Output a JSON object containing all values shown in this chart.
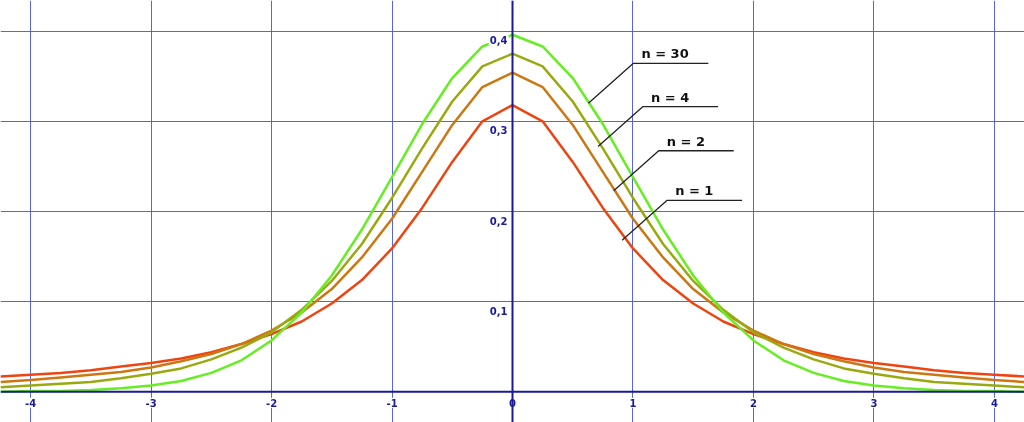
{
  "chart_data": {
    "type": "line",
    "x": [
      -4.25,
      -4,
      -3.75,
      -3.5,
      -3.25,
      -3,
      -2.75,
      -2.5,
      -2.25,
      -2,
      -1.75,
      -1.5,
      -1.25,
      -1,
      -0.75,
      -0.5,
      -0.25,
      0,
      0.25,
      0.5,
      0.75,
      1,
      1.25,
      1.5,
      1.75,
      2,
      2.25,
      2.5,
      2.75,
      3,
      3.25,
      3.5,
      3.75,
      4,
      4.25
    ],
    "series": [
      {
        "color": "#ee4411",
        "values": [
          0.017,
          0.019,
          0.021,
          0.024,
          0.028,
          0.032,
          0.037,
          0.044,
          0.053,
          0.064,
          0.078,
          0.098,
          0.124,
          0.159,
          0.204,
          0.255,
          0.3,
          0.318,
          0.3,
          0.255,
          0.204,
          0.159,
          0.124,
          0.098,
          0.078,
          0.064,
          0.053,
          0.044,
          0.037,
          0.032,
          0.028,
          0.024,
          0.021,
          0.019,
          0.017
        ]
      },
      {
        "color": "#cc7711",
        "values": [
          0.011,
          0.013,
          0.016,
          0.019,
          0.022,
          0.027,
          0.034,
          0.042,
          0.053,
          0.068,
          0.088,
          0.114,
          0.149,
          0.192,
          0.244,
          0.296,
          0.338,
          0.354,
          0.338,
          0.296,
          0.244,
          0.192,
          0.149,
          0.114,
          0.088,
          0.068,
          0.053,
          0.042,
          0.034,
          0.027,
          0.022,
          0.019,
          0.016,
          0.013,
          0.011
        ]
      },
      {
        "color": "#99aa11",
        "values": [
          0.005,
          0.007,
          0.009,
          0.011,
          0.015,
          0.02,
          0.026,
          0.036,
          0.049,
          0.066,
          0.091,
          0.123,
          0.164,
          0.215,
          0.27,
          0.322,
          0.361,
          0.375,
          0.361,
          0.322,
          0.27,
          0.215,
          0.164,
          0.123,
          0.091,
          0.066,
          0.049,
          0.036,
          0.026,
          0.02,
          0.015,
          0.011,
          0.009,
          0.007,
          0.005
        ]
      },
      {
        "color": "#66ee22",
        "values": [
          0.0,
          0.001,
          0.001,
          0.002,
          0.004,
          0.007,
          0.012,
          0.021,
          0.035,
          0.057,
          0.088,
          0.129,
          0.18,
          0.238,
          0.297,
          0.348,
          0.383,
          0.396,
          0.383,
          0.348,
          0.297,
          0.238,
          0.18,
          0.129,
          0.088,
          0.057,
          0.035,
          0.021,
          0.012,
          0.007,
          0.004,
          0.002,
          0.001,
          0.001,
          0.0
        ]
      }
    ],
    "annotations": [
      {
        "text": "n = 30",
        "x": 0.63,
        "y": 0.32
      },
      {
        "text": "n = 4",
        "x": 0.71,
        "y": 0.272
      },
      {
        "text": "n = 2",
        "x": 0.84,
        "y": 0.223
      },
      {
        "text": "n = 1",
        "x": 0.91,
        "y": 0.168
      }
    ],
    "xlim": [
      -4.25,
      4.25
    ],
    "ylim": [
      -0.034,
      0.434
    ],
    "xticks": [
      -4,
      -3,
      -2,
      -1,
      0,
      1,
      2,
      3,
      4
    ],
    "yticks": [
      {
        "value": 0.1,
        "label": "0,1"
      },
      {
        "value": 0.2,
        "label": "0,2"
      },
      {
        "value": 0.3,
        "label": "0,3"
      },
      {
        "value": 0.4,
        "label": "0,4"
      }
    ],
    "grid": true,
    "marker": "none",
    "line_style": "solid"
  }
}
